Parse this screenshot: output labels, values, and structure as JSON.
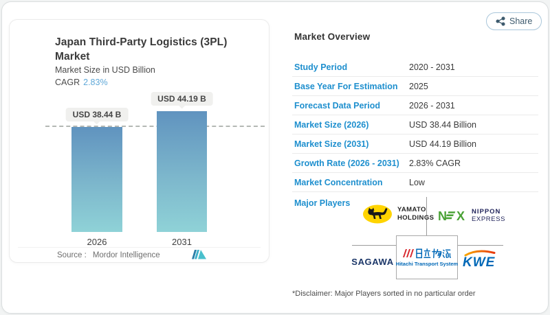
{
  "share_button": {
    "label": "Share"
  },
  "left_panel": {
    "title": "Japan Third-Party Logistics (3PL) Market",
    "subtitle": "Market Size in USD Billion",
    "cagr_label": "CAGR",
    "cagr_value": "2.83%",
    "source_label": "Source :",
    "source_value": "Mordor Intelligence"
  },
  "chart_data": {
    "type": "bar",
    "categories": [
      "2026",
      "2031"
    ],
    "values": [
      38.44,
      44.19
    ],
    "bar_labels": [
      "USD 38.44 B",
      "USD 44.19 B"
    ],
    "title": "Japan Third-Party Logistics (3PL) Market",
    "ylabel": "Market Size in USD Billion",
    "cagr_percent": 2.83,
    "reference_line": 38.44,
    "ylim": [
      0,
      44.19
    ],
    "grid": false,
    "bar_gradient": [
      "#6093bf",
      "#8fd2d7"
    ]
  },
  "overview": {
    "title": "Market Overview",
    "rows": [
      {
        "label": "Study Period",
        "value": "2020 - 2031"
      },
      {
        "label": "Base Year For Estimation",
        "value": "2025"
      },
      {
        "label": "Forecast Data Period",
        "value": "2026 - 2031"
      },
      {
        "label": "Market Size (2026)",
        "value": "USD 38.44 Billion"
      },
      {
        "label": "Market Size (2031)",
        "value": "USD 44.19 Billion"
      },
      {
        "label": "Growth Rate (2026 - 2031)",
        "value": "2.83% CAGR"
      },
      {
        "label": "Market Concentration",
        "value": "Low"
      }
    ],
    "major_players_label": "Major Players",
    "players": [
      {
        "name": "Yamato Holdings",
        "line1": "YAMATO",
        "line2": "HOLDINGS"
      },
      {
        "name": "Nippon Express",
        "logo_n": "N",
        "logo_x": "X",
        "line1": "NIPPON",
        "line2": "EXPRESS"
      },
      {
        "name": "Sagawa",
        "text": "SAGAWA"
      },
      {
        "name": "Hitachi Transport System",
        "kanji": "日立物流",
        "caption": "Hitachi Transport System"
      },
      {
        "name": "Kintetsu World Express",
        "text": "KWE"
      }
    ],
    "disclaimer": "*Disclaimer: Major Players sorted in no particular order"
  },
  "colors": {
    "accent_blue": "#1e8fce",
    "cagr_blue": "#5fa8d8",
    "text_dark": "#3a3a3a",
    "bar_top": "#6093bf",
    "bar_bottom": "#8fd2d7",
    "dashline_gray": "#b4b8b4",
    "share_text": "#3d5a6d",
    "yamato_yellow": "#ffd400",
    "nx_green": "#4aa236",
    "nippon_navy": "#22255c",
    "sagawa_navy": "#1b3668",
    "hitachi_blue": "#0068b7",
    "hitachi_red": "#d8262c",
    "kwe_blue": "#0068b7",
    "kwe_swoosh_start": "#f7a600",
    "kwe_swoosh_end": "#e8380d",
    "mi_teal": "#49c0cd",
    "mi_blue": "#2b7fa8"
  }
}
